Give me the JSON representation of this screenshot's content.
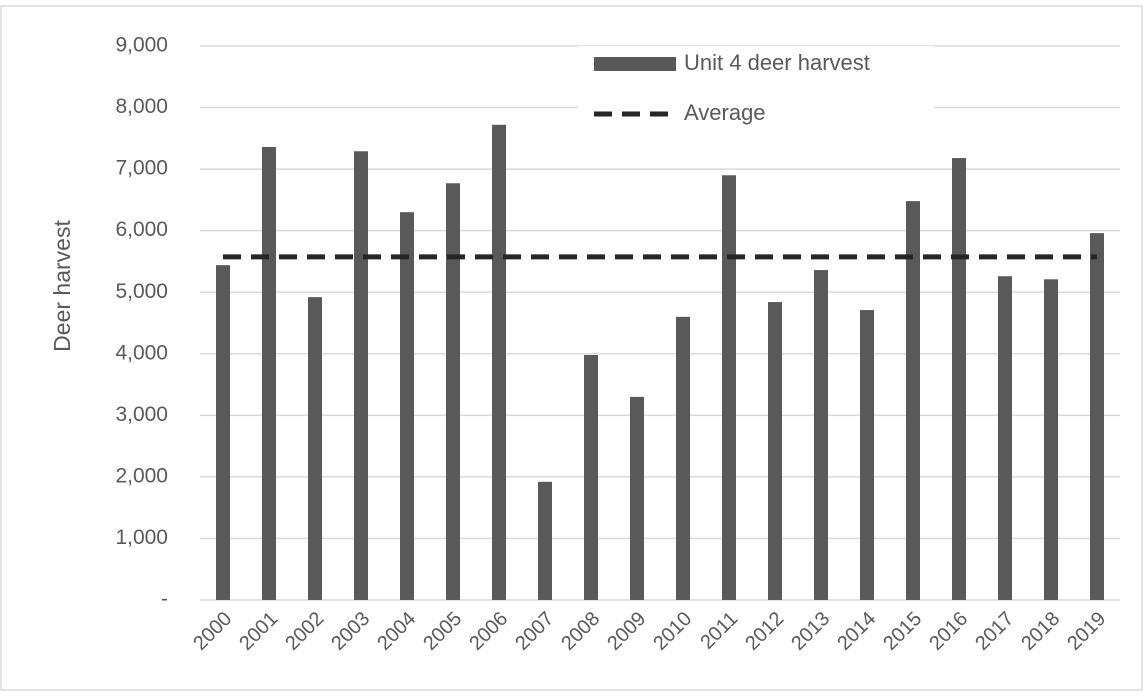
{
  "chart_data": {
    "type": "bar",
    "y_label": "Deer harvest",
    "categories": [
      "2000",
      "2001",
      "2002",
      "2003",
      "2004",
      "2005",
      "2006",
      "2007",
      "2008",
      "2009",
      "2010",
      "2011",
      "2012",
      "2013",
      "2014",
      "2015",
      "2016",
      "2017",
      "2018",
      "2019"
    ],
    "series": [
      {
        "name": "Unit 4 deer harvest",
        "type": "bar",
        "color": "#595959",
        "values": [
          5440,
          7360,
          4920,
          7290,
          6300,
          6770,
          7720,
          1920,
          3980,
          3300,
          4600,
          6900,
          4840,
          5360,
          4710,
          6480,
          7180,
          5260,
          5210,
          5960
        ]
      },
      {
        "name": "Average",
        "type": "line",
        "style": "dashed",
        "color": "#262626",
        "values": [
          5575,
          5575,
          5575,
          5575,
          5575,
          5575,
          5575,
          5575,
          5575,
          5575,
          5575,
          5575,
          5575,
          5575,
          5575,
          5575,
          5575,
          5575,
          5575,
          5575
        ]
      }
    ],
    "ylim": [
      0,
      9000
    ],
    "yticks": [
      {
        "value": 0,
        "label": "-"
      },
      {
        "value": 1000,
        "label": "1,000"
      },
      {
        "value": 2000,
        "label": "2,000"
      },
      {
        "value": 3000,
        "label": "3,000"
      },
      {
        "value": 4000,
        "label": "4,000"
      },
      {
        "value": 5000,
        "label": "5,000"
      },
      {
        "value": 6000,
        "label": "6,000"
      },
      {
        "value": 7000,
        "label": "7,000"
      },
      {
        "value": 8000,
        "label": "8,000"
      },
      {
        "value": 9000,
        "label": "9,000"
      }
    ],
    "grid": true,
    "legend": "top-right"
  }
}
